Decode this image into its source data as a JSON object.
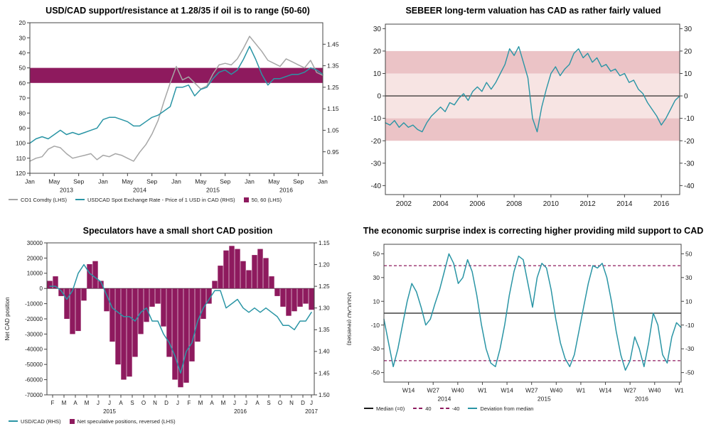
{
  "colors": {
    "teal": "#2A95A5",
    "purple": "#8E1A5E",
    "gray": "#A6A6A6",
    "black": "#1a1a1a",
    "pink_light": "#F7E4E3",
    "pink_dark": "#EBC3C6"
  },
  "chart_data": [
    {
      "type": "line",
      "title": "USD/CAD support/resistance at 1.28/35 if oil is to range (50-60)",
      "x": {
        "min": 0,
        "max": 48,
        "ticks": [
          {
            "label": "Jan",
            "x": 0
          },
          {
            "label": "May",
            "x": 4
          },
          {
            "label": "Sep",
            "x": 8
          },
          {
            "label": "Jan",
            "x": 12
          },
          {
            "label": "May",
            "x": 16
          },
          {
            "label": "Sep",
            "x": 20
          },
          {
            "label": "Jan",
            "x": 24
          },
          {
            "label": "May",
            "x": 28
          },
          {
            "label": "Sep",
            "x": 32
          },
          {
            "label": "Jan",
            "x": 36
          },
          {
            "label": "May",
            "x": 40
          },
          {
            "label": "Sep",
            "x": 44
          },
          {
            "label": "Jan",
            "x": 48
          }
        ],
        "years": [
          {
            "label": "2013",
            "x": 6
          },
          {
            "label": "2014",
            "x": 18
          },
          {
            "label": "2015",
            "x": 30
          },
          {
            "label": "2016",
            "x": 42
          }
        ]
      },
      "left_axis": {
        "min": 20,
        "max": 120,
        "reversed": true,
        "ticks": [
          20,
          30,
          40,
          50,
          60,
          70,
          80,
          90,
          100,
          110,
          120
        ]
      },
      "right_axis": {
        "min": 0.85,
        "max": 1.55,
        "decimals": 2,
        "ticks": [
          1.45,
          1.35,
          1.25,
          1.15,
          1.05,
          0.95
        ]
      },
      "bands": [
        {
          "axis": "left_axis",
          "from": 50,
          "to": 60,
          "color": "purple"
        }
      ],
      "series": [
        {
          "name": "CO1 Comdty (LHS)",
          "type": "line",
          "axis": "left_axis",
          "color": "gray",
          "values": [
            112,
            110,
            109,
            104,
            102,
            103,
            107,
            110,
            109,
            108,
            107,
            111,
            108,
            109,
            107,
            108,
            110,
            112,
            106,
            101,
            94,
            85,
            72,
            60,
            49,
            58,
            56,
            60,
            64,
            62,
            54,
            48,
            47,
            48,
            44,
            37,
            29,
            34,
            39,
            45,
            47,
            49,
            44,
            46,
            48,
            50,
            45,
            53,
            55
          ]
        },
        {
          "name": "USDCAD Spot Exchange Rate - Price of 1 USD in CAD (RHS)",
          "type": "line",
          "axis": "right_axis",
          "color": "teal",
          "values": [
            0.99,
            1.01,
            1.02,
            1.01,
            1.03,
            1.05,
            1.03,
            1.04,
            1.03,
            1.04,
            1.05,
            1.06,
            1.1,
            1.11,
            1.11,
            1.1,
            1.09,
            1.07,
            1.07,
            1.09,
            1.11,
            1.12,
            1.14,
            1.16,
            1.25,
            1.25,
            1.26,
            1.21,
            1.24,
            1.25,
            1.29,
            1.32,
            1.33,
            1.31,
            1.33,
            1.38,
            1.44,
            1.38,
            1.31,
            1.26,
            1.29,
            1.29,
            1.3,
            1.31,
            1.31,
            1.32,
            1.34,
            1.33,
            1.31
          ]
        }
      ],
      "legend": [
        {
          "marker": "line",
          "color": "gray",
          "label": "CO1 Comdty (LHS)"
        },
        {
          "marker": "line",
          "color": "teal",
          "label": "USDCAD Spot Exchange Rate - Price of 1 USD in CAD (RHS)"
        },
        {
          "marker": "square",
          "color": "purple",
          "label": "50, 60 (LHS)"
        }
      ]
    },
    {
      "type": "line",
      "title": "SEBEER long-term valuation has CAD as rather fairly valued",
      "x": {
        "min": 2001,
        "max": 2017,
        "ticks": [
          {
            "label": "2002",
            "x": 2002
          },
          {
            "label": "2004",
            "x": 2004
          },
          {
            "label": "2006",
            "x": 2006
          },
          {
            "label": "2008",
            "x": 2008
          },
          {
            "label": "2010",
            "x": 2010
          },
          {
            "label": "2012",
            "x": 2012
          },
          {
            "label": "2014",
            "x": 2014
          },
          {
            "label": "2016",
            "x": 2016
          }
        ]
      },
      "left_axis": {
        "min": -44,
        "max": 32,
        "ticks": [
          30,
          20,
          10,
          0,
          -10,
          -20,
          -30,
          -40
        ]
      },
      "right_axis": {
        "min": -44,
        "max": 32,
        "ticks": [
          30,
          20,
          10,
          0,
          -10,
          -20,
          -30,
          -40
        ]
      },
      "bands": [
        {
          "axis": "left_axis",
          "from": -10,
          "to": 10,
          "color": "pink_light"
        },
        {
          "axis": "left_axis",
          "from": 10,
          "to": 20,
          "color": "pink_dark"
        },
        {
          "axis": "left_axis",
          "from": -20,
          "to": -10,
          "color": "pink_dark"
        }
      ],
      "hlines": [
        {
          "y": 0,
          "axis": "left_axis",
          "color": "black",
          "width": 1.2
        }
      ],
      "series": [
        {
          "name": "SEBEER valuation deviation",
          "type": "line",
          "axis": "left_axis",
          "color": "teal",
          "values": [
            -12,
            -13,
            -11,
            -14,
            -12,
            -14,
            -13,
            -15,
            -16,
            -12,
            -9,
            -7,
            -5,
            -7,
            -3,
            -4,
            -1,
            1,
            -2,
            2,
            4,
            2,
            6,
            3,
            6,
            10,
            14,
            21,
            18,
            22,
            15,
            8,
            -10,
            -16,
            -5,
            3,
            10,
            13,
            9,
            12,
            14,
            19,
            21,
            17,
            19,
            15,
            17,
            13,
            14,
            11,
            12,
            9,
            10,
            6,
            7,
            3,
            1,
            -3,
            -6,
            -9,
            -13,
            -10,
            -6,
            -2,
            0
          ]
        }
      ]
    },
    {
      "type": "bar",
      "title": "Speculators have a small short CAD position",
      "left_label": "Net CAD position",
      "right_label": "USD/CAD (reversed)",
      "x": {
        "min": 0,
        "max": 47,
        "ticks": [
          {
            "label": "F",
            "x": 1
          },
          {
            "label": "M",
            "x": 3
          },
          {
            "label": "A",
            "x": 5
          },
          {
            "label": "M",
            "x": 7
          },
          {
            "label": "J",
            "x": 9
          },
          {
            "label": "J",
            "x": 11
          },
          {
            "label": "A",
            "x": 13
          },
          {
            "label": "S",
            "x": 15
          },
          {
            "label": "O",
            "x": 17
          },
          {
            "label": "N",
            "x": 19
          },
          {
            "label": "D",
            "x": 21
          },
          {
            "label": "J",
            "x": 23
          },
          {
            "label": "F",
            "x": 25
          },
          {
            "label": "M",
            "x": 27
          },
          {
            "label": "A",
            "x": 29
          },
          {
            "label": "M",
            "x": 31
          },
          {
            "label": "J",
            "x": 33
          },
          {
            "label": "J",
            "x": 35
          },
          {
            "label": "A",
            "x": 37
          },
          {
            "label": "S",
            "x": 39
          },
          {
            "label": "O",
            "x": 41
          },
          {
            "label": "N",
            "x": 43
          },
          {
            "label": "D",
            "x": 45
          },
          {
            "label": "J",
            "x": 46.5
          }
        ],
        "years": [
          {
            "label": "2015",
            "x": 11
          },
          {
            "label": "2016",
            "x": 34
          },
          {
            "label": "2017",
            "x": 46.5
          }
        ]
      },
      "left_axis": {
        "min": -70000,
        "max": 30000,
        "ticks": [
          30000,
          20000,
          10000,
          0,
          -10000,
          -20000,
          -30000,
          -40000,
          -50000,
          -60000,
          -70000
        ]
      },
      "right_axis": {
        "min": 1.15,
        "max": 1.5,
        "reversed": true,
        "decimals": 2,
        "ticks": [
          1.15,
          1.2,
          1.25,
          1.3,
          1.35,
          1.4,
          1.45,
          1.5
        ]
      },
      "hlines": [
        {
          "y": 0,
          "axis": "left_axis",
          "color": "#333",
          "width": 0.8
        }
      ],
      "series": [
        {
          "name": "Net speculative positions, reversed (LHS)",
          "type": "bar",
          "axis": "left_axis",
          "color": "purple",
          "values": [
            5000,
            8000,
            -5000,
            -20000,
            -30000,
            -28000,
            -8000,
            16000,
            18000,
            5000,
            -15000,
            -35000,
            -50000,
            -60000,
            -58000,
            -45000,
            -30000,
            -22000,
            -12000,
            -10000,
            -25000,
            -45000,
            -60000,
            -65000,
            -62000,
            -48000,
            -35000,
            -20000,
            -10000,
            5000,
            15000,
            25000,
            28000,
            26000,
            18000,
            12000,
            22000,
            26000,
            20000,
            8000,
            -5000,
            -12000,
            -18000,
            -15000,
            -12000,
            -10000,
            -14000
          ]
        },
        {
          "name": "USD/CAD (RHS)",
          "type": "line",
          "axis": "right_axis",
          "color": "teal",
          "x_offset": 0.5,
          "values": [
            1.25,
            1.25,
            1.26,
            1.28,
            1.26,
            1.22,
            1.2,
            1.22,
            1.23,
            1.24,
            1.27,
            1.3,
            1.31,
            1.32,
            1.32,
            1.33,
            1.31,
            1.3,
            1.33,
            1.33,
            1.36,
            1.38,
            1.41,
            1.45,
            1.4,
            1.38,
            1.33,
            1.3,
            1.28,
            1.26,
            1.26,
            1.3,
            1.29,
            1.28,
            1.3,
            1.31,
            1.3,
            1.31,
            1.3,
            1.31,
            1.32,
            1.34,
            1.34,
            1.35,
            1.33,
            1.33,
            1.31
          ]
        }
      ],
      "legend": [
        {
          "marker": "line",
          "color": "teal",
          "label": "USD/CAD (RHS)"
        },
        {
          "marker": "square",
          "color": "purple",
          "label": "Net speculative positions, reversed (LHS)"
        }
      ]
    },
    {
      "type": "line",
      "title": "The economic surprise index is correcting higher providing mild support to CAD",
      "x": {
        "min": 0,
        "max": 64,
        "ticks": [
          {
            "label": "W14",
            "x": 5.3
          },
          {
            "label": "W27",
            "x": 10.6
          },
          {
            "label": "W40",
            "x": 15.9
          },
          {
            "label": "W1",
            "x": 21.2
          },
          {
            "label": "W14",
            "x": 26.5
          },
          {
            "label": "W27",
            "x": 31.8
          },
          {
            "label": "W40",
            "x": 37.1
          },
          {
            "label": "W1",
            "x": 42.4
          },
          {
            "label": "W14",
            "x": 47.7
          },
          {
            "label": "W27",
            "x": 53
          },
          {
            "label": "W40",
            "x": 58.3
          },
          {
            "label": "W1",
            "x": 63.6
          }
        ],
        "years": [
          {
            "label": "2014",
            "x": 13
          },
          {
            "label": "2015",
            "x": 34.5
          },
          {
            "label": "2016",
            "x": 55.5
          }
        ]
      },
      "left_axis": {
        "min": -58,
        "max": 58,
        "ticks": [
          50,
          30,
          10,
          -10,
          -30,
          -50
        ]
      },
      "right_axis": {
        "min": -58,
        "max": 58,
        "ticks": [
          50,
          30,
          10,
          -10,
          -30,
          -50
        ]
      },
      "hlines": [
        {
          "y": 0,
          "axis": "left_axis",
          "color": "black",
          "width": 1.2
        },
        {
          "y": 40,
          "axis": "left_axis",
          "color": "purple",
          "dash": "4,3",
          "width": 1.2
        },
        {
          "y": -40,
          "axis": "left_axis",
          "color": "purple",
          "dash": "4,3",
          "width": 1.2
        }
      ],
      "series": [
        {
          "name": "Deviation from median",
          "type": "line",
          "axis": "left_axis",
          "color": "teal",
          "values": [
            -5,
            -25,
            -45,
            -30,
            -10,
            10,
            25,
            18,
            5,
            -10,
            -5,
            8,
            20,
            35,
            50,
            42,
            25,
            30,
            45,
            35,
            15,
            -10,
            -30,
            -42,
            -45,
            -30,
            -10,
            15,
            35,
            48,
            45,
            25,
            5,
            30,
            42,
            38,
            20,
            -5,
            -25,
            -38,
            -45,
            -35,
            -15,
            5,
            25,
            40,
            38,
            42,
            30,
            10,
            -15,
            -35,
            -48,
            -40,
            -20,
            -30,
            -45,
            -25,
            0,
            -10,
            -35,
            -42,
            -20,
            -8,
            -12
          ]
        }
      ],
      "legend": [
        {
          "marker": "line",
          "color": "black",
          "label": "Median (=0)"
        },
        {
          "marker": "dash",
          "color": "purple",
          "label": "40"
        },
        {
          "marker": "dash",
          "color": "purple",
          "label": "-40"
        },
        {
          "marker": "line",
          "color": "teal",
          "label": "Deviation from median"
        }
      ]
    }
  ]
}
